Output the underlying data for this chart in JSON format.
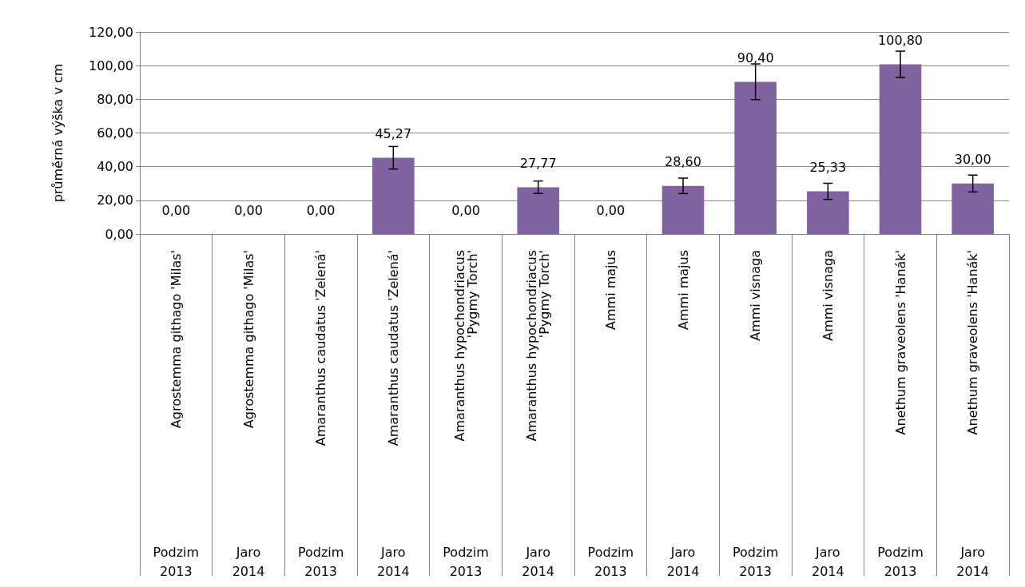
{
  "chart_data": {
    "type": "bar",
    "ylabel": "průměrná výška v cm",
    "categories": [
      "Agrostemma githago 'Milas'\nPodzim\n2013",
      "Agrostemma githago 'Milas'\nJaro\n2014",
      "Amaranthus caudatus 'Zelená'\nPodzim\n2013",
      "Amaranthus caudatus 'Zelená'\nJaro\n2014",
      "Amaranthus hypochondriacus\n'Pygmy Torch'\nPodzim\n2013",
      "Amaranthus hypochondriacus\n'Pygmy Torch'\nJaro\n2014",
      "Ammi majus\nPodzim\n2013",
      "Ammi majus\nJaro\n2014",
      "Ammi visnaga\nPodzim\n2013",
      "Ammi visnaga\nJaro\n2014",
      "Anethum graveolens 'Hanák'\nPodzim\n2013",
      "Anethum graveolens 'Hanák'\nJaro\n2014"
    ],
    "values": [
      0,
      0,
      0,
      45.27,
      0,
      27.77,
      0,
      28.6,
      90.4,
      25.33,
      100.8,
      30
    ],
    "value_labels": [
      "0,00",
      "0,00",
      "0,00",
      "45,27",
      "0,00",
      "27,77",
      "0,00",
      "28,60",
      "90,40",
      "25,33",
      "100,80",
      "30,00"
    ],
    "errors": [
      null,
      null,
      null,
      6.7,
      null,
      3.7,
      null,
      4.6,
      10.6,
      4.8,
      7.8,
      5
    ],
    "color": "#8064a2",
    "ylim": [
      0,
      120
    ],
    "yticks": [
      {
        "value": 0,
        "label": "0,00"
      },
      {
        "value": 20,
        "label": "20,00"
      },
      {
        "value": 40,
        "label": "40,00"
      },
      {
        "value": 60,
        "label": "60,00"
      },
      {
        "value": 80,
        "label": "80,00"
      },
      {
        "value": 100,
        "label": "100,00"
      },
      {
        "value": 120,
        "label": "120,00"
      }
    ],
    "grid": "y"
  }
}
